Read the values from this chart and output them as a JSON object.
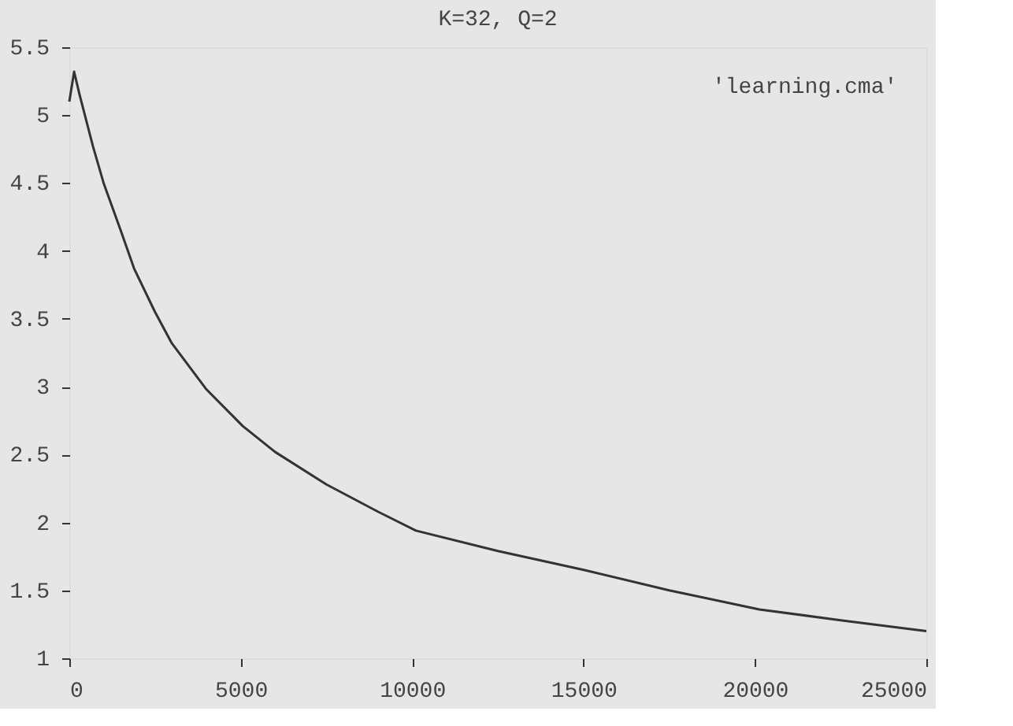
{
  "chart_data": {
    "type": "line",
    "title": "K=32, Q=2",
    "x": [
      0,
      140,
      300,
      690,
      1000,
      1500,
      1890,
      2500,
      2990,
      4000,
      5060,
      6000,
      7500,
      9000,
      10110,
      12500,
      15030,
      17500,
      20130,
      22500,
      25000
    ],
    "series": [
      {
        "name": "'learning.cma'",
        "color": "#333333",
        "values": [
          5.1,
          5.32,
          5.15,
          4.77,
          4.5,
          4.15,
          3.87,
          3.55,
          3.32,
          2.98,
          2.71,
          2.52,
          2.28,
          2.08,
          1.94,
          1.79,
          1.65,
          1.5,
          1.36,
          1.28,
          1.2
        ]
      }
    ],
    "xlim": [
      0,
      25000
    ],
    "xticks": [
      0,
      5000,
      10000,
      15000,
      20000,
      25000
    ],
    "ylim": [
      1,
      5.5
    ],
    "yticks": [
      1,
      1.5,
      2,
      2.5,
      3,
      3.5,
      4,
      4.5,
      5,
      5.5
    ],
    "grid": false,
    "legend": "top right",
    "marker": "none",
    "line_style": "solid"
  }
}
